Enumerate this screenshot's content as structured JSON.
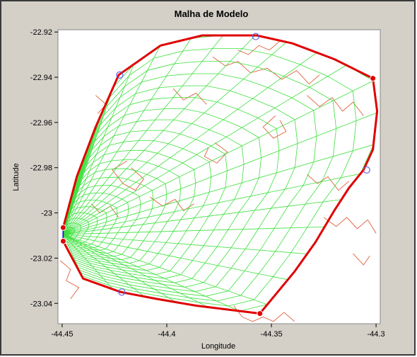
{
  "chart_data": {
    "type": "line",
    "title": "Malha de Modelo",
    "xlabel": "Longitude",
    "ylabel": "Latitude",
    "xlim": [
      -44.452,
      -44.298
    ],
    "ylim": [
      -23.049,
      -22.919
    ],
    "xticks": [
      -44.45,
      -44.4,
      -44.35,
      -44.3
    ],
    "xtick_labels": [
      "-44.45",
      "-44.4",
      "-44.35",
      "-44.3"
    ],
    "yticks": [
      -22.92,
      -22.94,
      -22.96,
      -22.98,
      -23,
      -23.02,
      -23.04
    ],
    "ytick_labels": [
      "-22.92",
      "-22.94",
      "-22.96",
      "-22.98",
      "-23",
      "-23.02",
      "-23.04"
    ],
    "grid": false,
    "colors": {
      "boundary": "#e00000",
      "mesh": "#3ce03c",
      "coastline": "#e07050",
      "control_points": "#6060e0",
      "background": "#ffffff",
      "panel": "#d4d0c8"
    },
    "series": [
      {
        "role": "boundary",
        "points": [
          [
            -44.4495,
            -23.0065
          ],
          [
            -44.443,
            -22.984
          ],
          [
            -44.434,
            -22.962
          ],
          [
            -44.423,
            -22.939
          ],
          [
            -44.403,
            -22.926
          ],
          [
            -44.383,
            -22.9215
          ],
          [
            -44.357,
            -22.9215
          ],
          [
            -44.34,
            -22.925
          ],
          [
            -44.32,
            -22.932
          ],
          [
            -44.3015,
            -22.9405
          ],
          [
            -44.2995,
            -22.955
          ],
          [
            -44.3015,
            -22.972
          ],
          [
            -44.306,
            -22.981
          ],
          [
            -44.313,
            -22.989
          ],
          [
            -44.32,
            -22.999
          ],
          [
            -44.329,
            -23.013
          ],
          [
            -44.339,
            -23.026
          ],
          [
            -44.3555,
            -23.0445
          ],
          [
            -44.386,
            -23.041
          ],
          [
            -44.405,
            -23.038
          ],
          [
            -44.422,
            -23.035
          ],
          [
            -44.44,
            -23.029
          ],
          [
            -44.4495,
            -23.0125
          ]
        ]
      },
      {
        "role": "open_boundary",
        "points": [
          [
            -44.4495,
            -23.0065
          ],
          [
            -44.4495,
            -23.0125
          ]
        ]
      }
    ],
    "corner_points": [
      [
        -44.4495,
        -23.0065
      ],
      [
        -44.3015,
        -22.9405
      ],
      [
        -44.3555,
        -23.0445
      ],
      [
        -44.4495,
        -23.0125
      ]
    ],
    "control_points": [
      [
        -44.4225,
        -22.939
      ],
      [
        -44.3575,
        -22.922
      ],
      [
        -44.3045,
        -22.981
      ],
      [
        -44.4215,
        -23.035
      ]
    ],
    "mesh": {
      "apex": [
        -44.4495,
        -23.0095
      ],
      "radial_lines": 13,
      "arc_lines": 24
    },
    "coastline": [
      [
        [
          -44.378,
          -22.931
        ],
        [
          -44.372,
          -22.935
        ],
        [
          -44.366,
          -22.933
        ],
        [
          -44.36,
          -22.938
        ],
        [
          -44.352,
          -22.936
        ],
        [
          -44.345,
          -22.941
        ],
        [
          -44.338,
          -22.937
        ],
        [
          -44.332,
          -22.943
        ],
        [
          -44.327,
          -22.939
        ]
      ],
      [
        [
          -44.346,
          -22.924
        ],
        [
          -44.351,
          -22.928
        ],
        [
          -44.356,
          -22.926
        ],
        [
          -44.361,
          -22.93
        ],
        [
          -44.366,
          -22.928
        ]
      ],
      [
        [
          -44.333,
          -22.948
        ],
        [
          -44.327,
          -22.953
        ],
        [
          -44.321,
          -22.949
        ],
        [
          -44.316,
          -22.955
        ],
        [
          -44.311,
          -22.951
        ],
        [
          -44.306,
          -22.957
        ]
      ],
      [
        [
          -44.348,
          -22.957
        ],
        [
          -44.354,
          -22.962
        ],
        [
          -44.349,
          -22.967
        ],
        [
          -44.343,
          -22.964
        ],
        [
          -44.346,
          -22.959
        ]
      ],
      [
        [
          -44.377,
          -22.969
        ],
        [
          -44.371,
          -22.973
        ],
        [
          -44.376,
          -22.978
        ],
        [
          -44.382,
          -22.975
        ],
        [
          -44.38,
          -22.971
        ]
      ],
      [
        [
          -44.419,
          -22.977
        ],
        [
          -44.426,
          -22.981
        ],
        [
          -44.421,
          -22.987
        ],
        [
          -44.415,
          -22.99
        ],
        [
          -44.411,
          -22.985
        ],
        [
          -44.417,
          -22.98
        ]
      ],
      [
        [
          -44.436,
          -22.996
        ],
        [
          -44.432,
          -23.0
        ],
        [
          -44.427,
          -22.997
        ],
        [
          -44.423,
          -23.002
        ]
      ],
      [
        [
          -44.408,
          -22.993
        ],
        [
          -44.402,
          -22.997
        ],
        [
          -44.396,
          -22.994
        ],
        [
          -44.392,
          -22.999
        ],
        [
          -44.387,
          -22.996
        ]
      ],
      [
        [
          -44.333,
          -22.983
        ],
        [
          -44.328,
          -22.987
        ],
        [
          -44.323,
          -22.984
        ],
        [
          -44.318,
          -22.99
        ],
        [
          -44.313,
          -22.986
        ]
      ],
      [
        [
          -44.325,
          -23.002
        ],
        [
          -44.319,
          -23.006
        ],
        [
          -44.314,
          -23.002
        ],
        [
          -44.309,
          -23.007
        ],
        [
          -44.304,
          -23.003
        ],
        [
          -44.3,
          -23.009
        ]
      ],
      [
        [
          -44.311,
          -23.018
        ],
        [
          -44.306,
          -23.023
        ],
        [
          -44.303,
          -23.019
        ]
      ],
      [
        [
          -44.451,
          -23.021
        ],
        [
          -44.446,
          -23.025
        ],
        [
          -44.448,
          -23.03
        ],
        [
          -44.442,
          -23.033
        ],
        [
          -44.446,
          -23.038
        ]
      ],
      [
        [
          -44.368,
          -23.041
        ],
        [
          -44.364,
          -23.046
        ],
        [
          -44.359,
          -23.048
        ],
        [
          -44.354,
          -23.046
        ],
        [
          -44.349,
          -23.048
        ],
        [
          -44.344,
          -23.044
        ],
        [
          -44.339,
          -23.048
        ]
      ],
      [
        [
          -44.434,
          -22.948
        ],
        [
          -44.429,
          -22.952
        ],
        [
          -44.433,
          -22.956
        ]
      ],
      [
        [
          -44.397,
          -22.945
        ],
        [
          -44.392,
          -22.95
        ],
        [
          -44.386,
          -22.947
        ],
        [
          -44.381,
          -22.952
        ]
      ]
    ]
  }
}
